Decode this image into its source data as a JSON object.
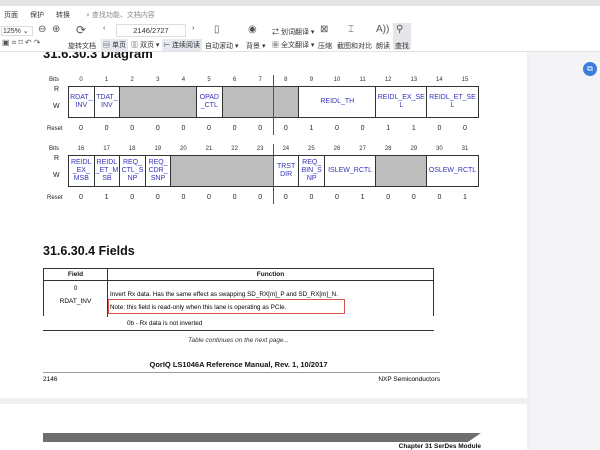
{
  "menu": {
    "items": [
      "页面",
      "保护",
      "转换"
    ],
    "search_placeholder": "查找功能、文档内容"
  },
  "toolbar": {
    "zoom": "125%",
    "rotate": "旋转文档",
    "page_indicator": "2146/2727",
    "single": "单页",
    "double": "双页",
    "continuous": "连续阅读",
    "autoscroll": "自动滚动",
    "background": "背景",
    "translate_word": "划词翻译",
    "translate_full": "全文翻译",
    "compress": "压缩",
    "screenshot": "截图和对比",
    "read": "朗读",
    "find": "查找"
  },
  "doc": {
    "diagram_heading": "31.6.30.3   Diagram",
    "bits_label": "Bits",
    "r_label": "R",
    "w_label": "W",
    "reset_label": "Reset",
    "row1": {
      "bits": [
        "0",
        "1",
        "2",
        "3",
        "4",
        "5",
        "6",
        "7",
        "8",
        "9",
        "10",
        "11",
        "12",
        "13",
        "14",
        "15"
      ],
      "cells": [
        {
          "label": "RDAT_INV",
          "span": 1
        },
        {
          "label": "TDAT_INV",
          "span": 1
        },
        {
          "label": "",
          "span": 3,
          "reserved": true
        },
        {
          "label": "OPAD_CTL",
          "span": 1
        },
        {
          "label": "",
          "span": 3,
          "reserved": true
        },
        {
          "label": "REIDL_TH",
          "span": 3
        },
        {
          "label": "REIDL_EX_SEL",
          "span": 2
        },
        {
          "label": "REIDL_ET_SEL",
          "span": 2
        }
      ],
      "reset": [
        "0",
        "0",
        "0",
        "0",
        "0",
        "0",
        "0",
        "0",
        "0",
        "1",
        "0",
        "0",
        "1",
        "1",
        "0",
        "0"
      ]
    },
    "row2": {
      "bits": [
        "16",
        "17",
        "18",
        "19",
        "20",
        "21",
        "22",
        "23",
        "24",
        "25",
        "26",
        "27",
        "28",
        "29",
        "30",
        "31"
      ],
      "cells": [
        {
          "label": "REIDL_EX_MSB",
          "span": 1
        },
        {
          "label": "REIDL_ET_MSB",
          "span": 1
        },
        {
          "label": "REQ_CTL_SNP",
          "span": 1
        },
        {
          "label": "REQ_CDR_SNP",
          "span": 1
        },
        {
          "label": "",
          "span": 4,
          "reserved": true
        },
        {
          "label": "TRST DIR",
          "span": 1
        },
        {
          "label": "REQ_BIN_SNP",
          "span": 1
        },
        {
          "label": "ISLEW_RCTL",
          "span": 2
        },
        {
          "label": "",
          "span": 2,
          "reserved": true
        },
        {
          "label": "OSLEW_RCTL",
          "span": 2
        }
      ],
      "reset": [
        "0",
        "1",
        "0",
        "0",
        "0",
        "0",
        "0",
        "0",
        "0",
        "0",
        "0",
        "1",
        "0",
        "0",
        "0",
        "1"
      ]
    },
    "fields_heading": "31.6.30.4   Fields",
    "table": {
      "headers": [
        "Field",
        "Function"
      ],
      "field_bit": "0",
      "field_name": "RDAT_INV",
      "lines": [
        "Invert Rx data. Has the same effect as swapping SD_RX[m]_P and SD_RX[m]_N.",
        "Note: this field is read-only when this lane is operating as PCIe.",
        "0b - Rx data is not inverted"
      ]
    },
    "continues": "Table continues on the next page...",
    "footer_title": "QorIQ LS1046A Reference Manual, Rev. 1, 10/2017",
    "page_number": "2146",
    "company": "NXP Semiconductors",
    "next_chapter": "Chapter 31 SerDes Module"
  },
  "colors": {
    "link_blue": "#3333bb",
    "reserved_gray": "#bdbdbd",
    "highlight_red": "#d9534f",
    "accent": "#3b7ddd"
  }
}
